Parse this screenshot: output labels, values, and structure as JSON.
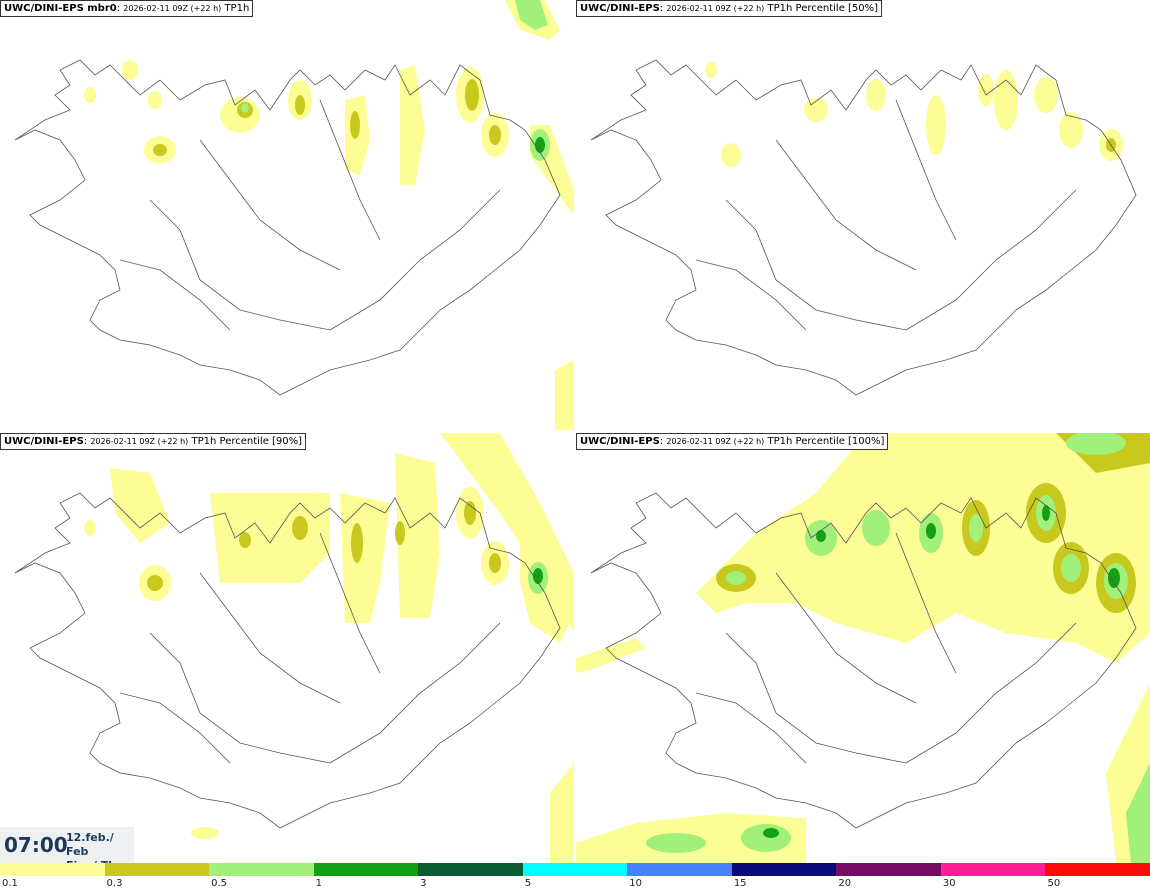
{
  "panels": [
    {
      "model": "UWC/DINI-EPS mbr0",
      "run": "2026-02-11 09Z (+22 h)",
      "field": "TP1h"
    },
    {
      "model": "UWC/DINI-EPS",
      "run": "2026-02-11 09Z (+22 h)",
      "field": "TP1h Percentile [50%]"
    },
    {
      "model": "UWC/DINI-EPS",
      "run": "2026-02-11 09Z (+22 h)",
      "field": "TP1h Percentile [90%]"
    },
    {
      "model": "UWC/DINI-EPS",
      "run": "2026-02-11 09Z (+22 h)",
      "field": "TP1h Percentile [100%]"
    }
  ],
  "time": {
    "hour": "07:00",
    "date": "12.feb./ Feb",
    "weekday": "Fim./ Thu"
  },
  "legend": {
    "levels": [
      "0.1",
      "0.3",
      "0.5",
      "1",
      "3",
      "5",
      "10",
      "15",
      "20",
      "30",
      "50"
    ],
    "colors": [
      "#fdfd96",
      "#c8c81e",
      "#a0f07a",
      "#14a014",
      "#0a5a32",
      "#00ffff",
      "#4682ff",
      "#0a0a78",
      "#780a64",
      "#ff1e96",
      "#ff0a0a"
    ]
  }
}
